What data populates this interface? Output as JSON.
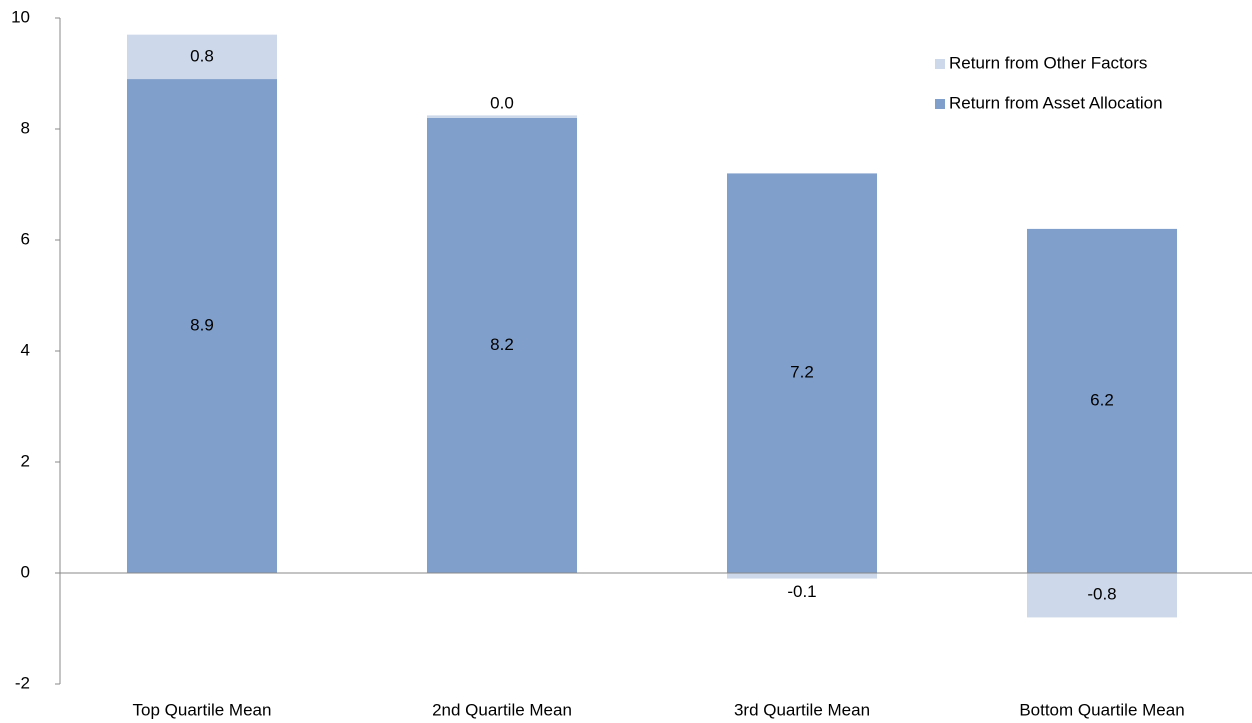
{
  "chart_data": {
    "type": "stacked-bar",
    "categories": [
      "Top Quartile Mean",
      "2nd Quartile Mean",
      "3rd Quartile Mean",
      "Bottom Quartile Mean"
    ],
    "series": [
      {
        "name": "Return from Asset Allocation",
        "color": "#819fcb",
        "values": [
          8.9,
          8.2,
          7.2,
          6.2
        ]
      },
      {
        "name": "Return from Other Factors",
        "color": "#cdd8ea",
        "values": [
          0.8,
          0.0,
          -0.1,
          -0.8
        ],
        "value_labels": [
          "0.8",
          "0.0",
          "-0.1",
          "-0.8"
        ]
      }
    ],
    "ylim": [
      -2,
      10
    ],
    "yticks": [
      -2,
      0,
      2,
      4,
      6,
      8,
      10
    ],
    "grid": false,
    "legend": "top-right"
  }
}
